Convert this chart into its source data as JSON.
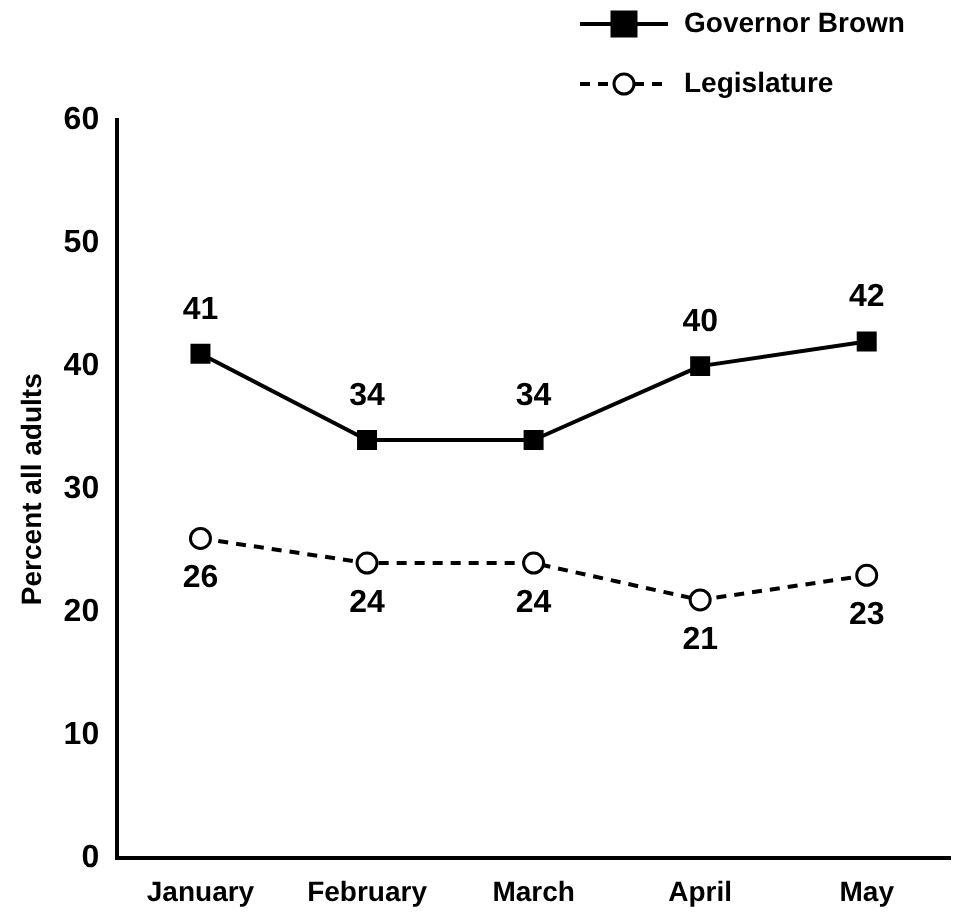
{
  "chart_data": {
    "type": "line",
    "ylabel": "Percent all adults",
    "categories": [
      "January",
      "February",
      "March",
      "April",
      "May"
    ],
    "series": [
      {
        "name": "Governor Brown",
        "color": "#000000",
        "values": [
          41,
          34,
          34,
          40,
          42
        ],
        "marker": "square",
        "line_style": "solid"
      },
      {
        "name": "Legislature",
        "color": "#000000",
        "values": [
          26,
          24,
          24,
          21,
          23
        ],
        "marker": "circle",
        "line_style": "dashed"
      }
    ],
    "ylim": [
      0,
      60
    ],
    "yticks": [
      0,
      10,
      20,
      30,
      40,
      50,
      60
    ],
    "grid": false,
    "legend": "top right",
    "data_labels": true
  }
}
